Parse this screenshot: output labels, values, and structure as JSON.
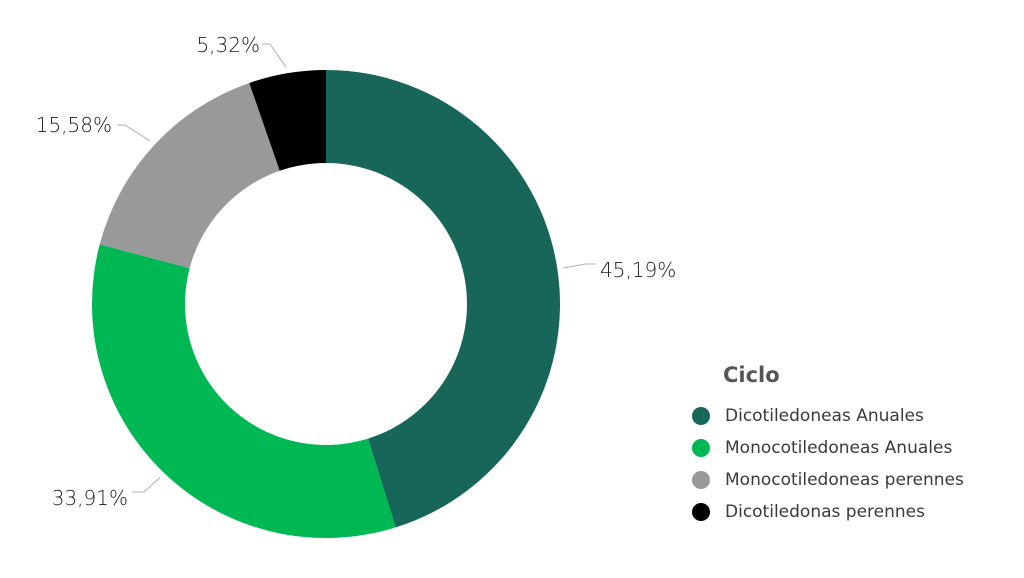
{
  "chart_data": {
    "type": "pie",
    "donut": true,
    "legend_title": "Ciclo",
    "legend_position": "bottom-right",
    "slices": [
      {
        "label": "Dicotiledoneas Anuales",
        "value": 45.19,
        "display": "45,19%",
        "color": "#176659"
      },
      {
        "label": "Monocotiledoneas Anuales",
        "value": 33.91,
        "display": "33,91%",
        "color": "#00b853"
      },
      {
        "label": "Monocotiledoneas perennes",
        "value": 15.58,
        "display": "15,58%",
        "color": "#999999"
      },
      {
        "label": "Dicotiledonas perennes",
        "value": 5.32,
        "display": "5,32%",
        "color": "#000000"
      }
    ]
  }
}
